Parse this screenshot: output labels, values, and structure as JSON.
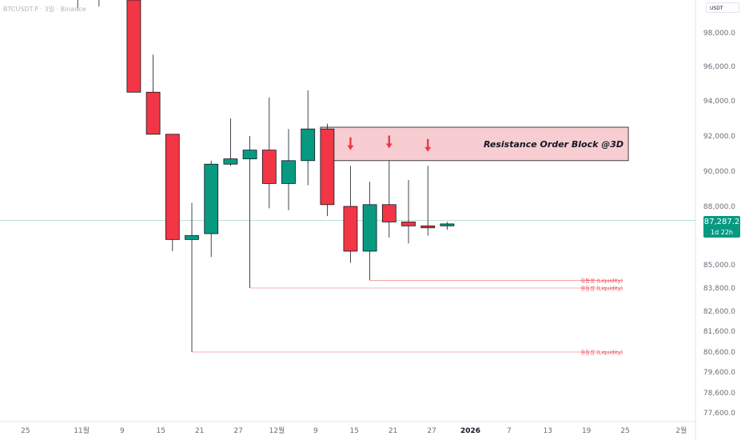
{
  "header": {
    "ticker": "BTCUSDT.P · 3일 · Binance",
    "currency": "USDT"
  },
  "price_tag": {
    "price": "87,287.2",
    "countdown": "1d 22h"
  },
  "colors": {
    "up": "#089981",
    "down": "#f23645",
    "zone_fill": "#f7cdd1",
    "zone_stroke": "#131722",
    "liquidity": "#f23645"
  },
  "chart_data": {
    "type": "candlestick",
    "y_scale": "nonlinear",
    "ylim": [
      77000,
      99500
    ],
    "y_ticks": [
      "98,000.0",
      "96,000.0",
      "94,000.0",
      "92,000.0",
      "90,000.0",
      "88,000.0",
      "85,000.0",
      "83,800.0",
      "82,600.0",
      "81,600.0",
      "80,600.0",
      "79,600.0",
      "78,600.0",
      "77,600.0"
    ],
    "y_tick_values": [
      98000,
      96000,
      94000,
      92000,
      90000,
      88000,
      85000,
      83800,
      82600,
      81600,
      80600,
      79600,
      78600,
      77600
    ],
    "x_ticks": [
      {
        "label": "25",
        "slot": -8.6,
        "bold": false
      },
      {
        "label": "11월",
        "slot": -5.7,
        "bold": false
      },
      {
        "label": "9",
        "slot": -3.6,
        "bold": false
      },
      {
        "label": "15",
        "slot": -1.6,
        "bold": false
      },
      {
        "label": "21",
        "slot": 0.4,
        "bold": false
      },
      {
        "label": "27",
        "slot": 2.4,
        "bold": false
      },
      {
        "label": "12월",
        "slot": 4.4,
        "bold": false
      },
      {
        "label": "9",
        "slot": 6.4,
        "bold": false
      },
      {
        "label": "15",
        "slot": 8.4,
        "bold": false
      },
      {
        "label": "21",
        "slot": 10.4,
        "bold": false
      },
      {
        "label": "27",
        "slot": 12.4,
        "bold": false
      },
      {
        "label": "2026",
        "slot": 14.4,
        "bold": true
      },
      {
        "label": "7",
        "slot": 16.4,
        "bold": false
      },
      {
        "label": "13",
        "slot": 18.4,
        "bold": false
      },
      {
        "label": "19",
        "slot": 20.4,
        "bold": false
      },
      {
        "label": "25",
        "slot": 22.4,
        "bold": false
      },
      {
        "label": "2월",
        "slot": 25.3,
        "bold": false
      }
    ],
    "candles": [
      {
        "o": 99500,
        "h": 99500,
        "l": 99000,
        "c": 99500,
        "slot": -5.9,
        "wick_only": true
      },
      {
        "o": 99500,
        "h": 99500,
        "l": 99200,
        "c": 99500,
        "slot": -4.8,
        "wick_only": true
      },
      {
        "o": 99500,
        "h": 99500,
        "l": 94500,
        "c": 94500,
        "slot": -3.0
      },
      {
        "o": 94500,
        "h": 96700,
        "l": 92200,
        "c": 92100,
        "slot": -2.0
      },
      {
        "o": 92100,
        "h": 92100,
        "l": 85700,
        "c": 86300,
        "slot": -1.0
      },
      {
        "o": 86300,
        "h": 88200,
        "l": 80600,
        "c": 86500,
        "slot": 0.0
      },
      {
        "o": 86600,
        "h": 90600,
        "l": 85400,
        "c": 90400,
        "slot": 1.0
      },
      {
        "o": 90400,
        "h": 93000,
        "l": 90300,
        "c": 90700,
        "slot": 2.0
      },
      {
        "o": 90700,
        "h": 92000,
        "l": 83800,
        "c": 91200,
        "slot": 3.0
      },
      {
        "o": 91200,
        "h": 94200,
        "l": 87900,
        "c": 89300,
        "slot": 4.0
      },
      {
        "o": 89300,
        "h": 92400,
        "l": 87800,
        "c": 90600,
        "slot": 5.0
      },
      {
        "o": 90600,
        "h": 94600,
        "l": 89200,
        "c": 92400,
        "slot": 6.0
      },
      {
        "o": 92400,
        "h": 92700,
        "l": 87500,
        "c": 88100,
        "slot": 7.0
      },
      {
        "o": 88000,
        "h": 90300,
        "l": 85100,
        "c": 85700,
        "slot": 8.2
      },
      {
        "o": 85700,
        "h": 89400,
        "l": 84200,
        "c": 88100,
        "slot": 9.2
      },
      {
        "o": 88100,
        "h": 90600,
        "l": 86400,
        "c": 87200,
        "slot": 10.2
      },
      {
        "o": 87200,
        "h": 89500,
        "l": 86100,
        "c": 87000,
        "slot": 11.2
      },
      {
        "o": 87000,
        "h": 90300,
        "l": 86500,
        "c": 86900,
        "slot": 12.2
      },
      {
        "o": 87000,
        "h": 87200,
        "l": 86800,
        "c": 87100,
        "slot": 13.2
      }
    ],
    "annotations": {
      "resistance_zone": {
        "label": "Resistance Order Block @3D",
        "y_low": 90600,
        "y_high": 92500,
        "slot_start": 7.0,
        "slot_end": 22.4
      },
      "arrows": [
        {
          "slot": 8.2,
          "y": 91200
        },
        {
          "slot": 10.2,
          "y": 91300
        },
        {
          "slot": 12.2,
          "y": 91100
        }
      ],
      "liquidity_lines": [
        {
          "label": "유동성 (Liquidity)",
          "y": 84200,
          "slot_start": 9.2,
          "slot_end": 22.4
        },
        {
          "label": "유동성 (Liquidity)",
          "y": 83800,
          "slot_start": 3.0,
          "slot_end": 22.4
        },
        {
          "label": "유동성 (Liquidity)",
          "y": 80600,
          "slot_start": 0.0,
          "slot_end": 22.4
        }
      ],
      "current_price": 87287.2
    }
  }
}
